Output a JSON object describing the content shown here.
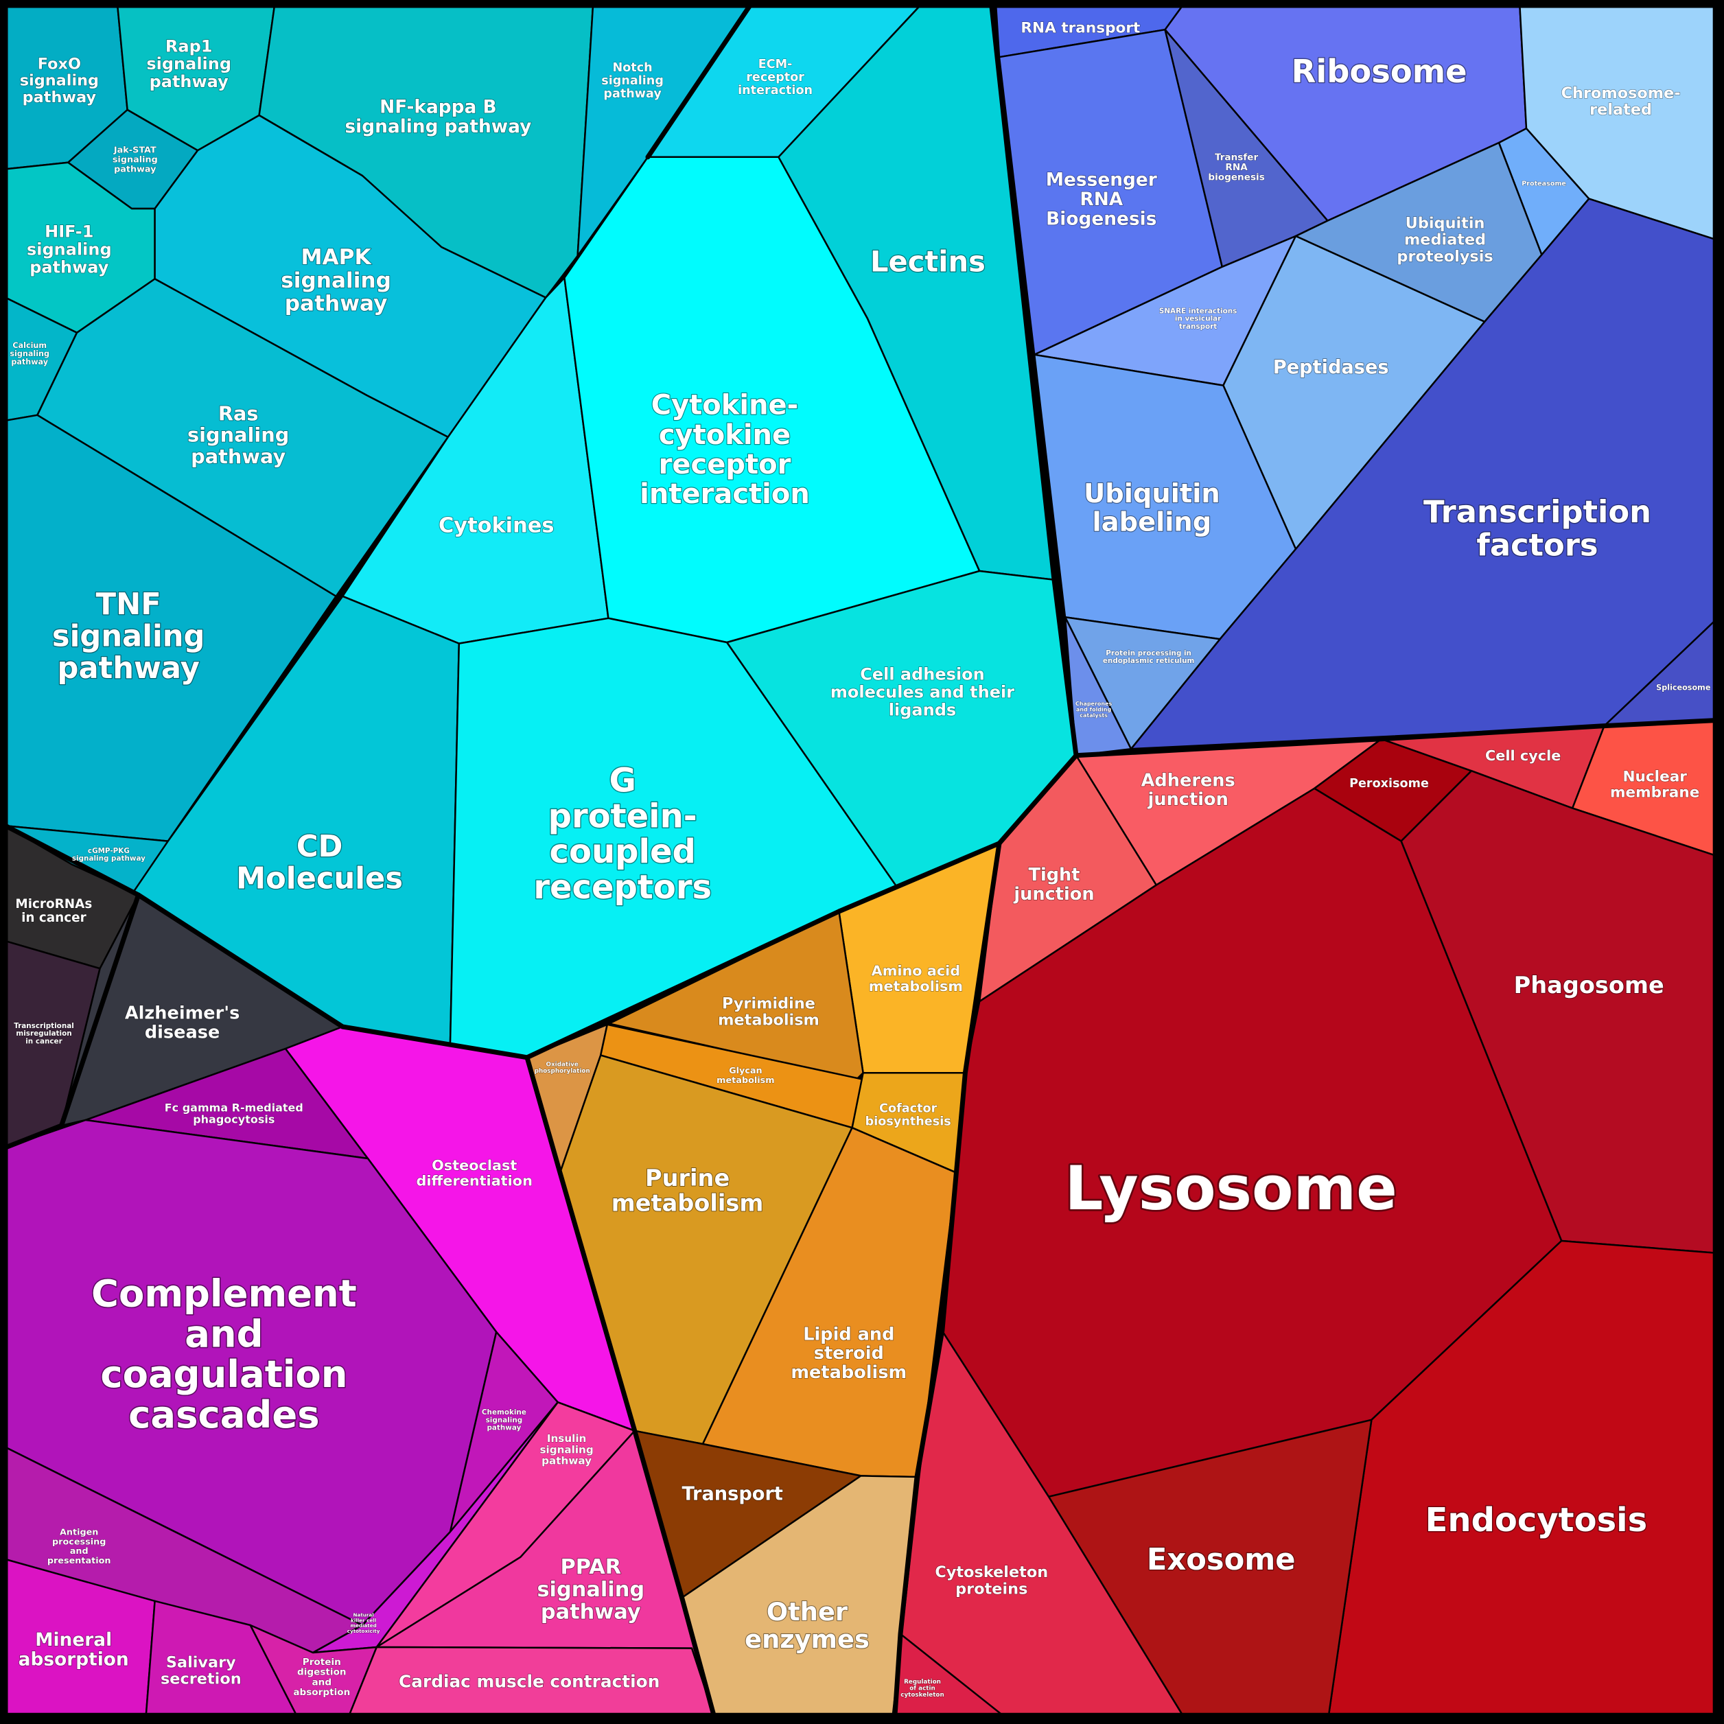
{
  "cells": [
    {
      "id": "foxo",
      "label": "FoxO\nsignaling\npathway",
      "color": "#03ADC4"
    },
    {
      "id": "rap1",
      "label": "Rap1\nsignaling\npathway",
      "color": "#06C1C3"
    },
    {
      "id": "nfkb",
      "label": "NF-kappa B\nsignaling pathway",
      "color": "#06BFC6"
    },
    {
      "id": "notch",
      "label": "Notch\nsignaling\npathway",
      "color": "#06BBD8"
    },
    {
      "id": "ecm",
      "label": "ECM-\nreceptor\ninteraction",
      "color": "#0ED7EF"
    },
    {
      "id": "jakstat",
      "label": "Jak-STAT\nsignaling\npathway",
      "color": "#04A9C1"
    },
    {
      "id": "hif1",
      "label": "HIF-1\nsignaling\npathway",
      "color": "#03C6C5"
    },
    {
      "id": "mapk",
      "label": "MAPK\nsignaling\npathway",
      "color": "#08C0DB"
    },
    {
      "id": "calcium",
      "label": "Calcium\nsignaling\npathway",
      "color": "#03B6C9"
    },
    {
      "id": "ras",
      "label": "Ras\nsignaling\npathway",
      "color": "#06BDD2"
    },
    {
      "id": "tnf",
      "label": "TNF\nsignaling\npathway",
      "color": "#03B0CA"
    },
    {
      "id": "cgmp",
      "label": "cGMP-PKG\nsignaling pathway",
      "color": "#04B2CA"
    },
    {
      "id": "cytokines",
      "label": "Cytokines",
      "color": "#12EBF7"
    },
    {
      "id": "cytokine_receptor",
      "label": "Cytokine-\ncytokine\nreceptor\ninteraction",
      "color": "#00FCFE"
    },
    {
      "id": "lectins",
      "label": "Lectins",
      "color": "#02D0D8"
    },
    {
      "id": "cd",
      "label": "CD\nMolecules",
      "color": "#03C6D7"
    },
    {
      "id": "gpcr",
      "label": "G\nprotein-\ncoupled\nreceptors",
      "color": "#06F0F4"
    },
    {
      "id": "cell_adhesion",
      "label": "Cell adhesion\nmolecules and their\nligands",
      "color": "#07E3E0"
    },
    {
      "id": "rna_transport",
      "label": "RNA transport",
      "color": "#4E68EC"
    },
    {
      "id": "ribosome",
      "label": "Ribosome",
      "color": "#6673F2"
    },
    {
      "id": "chromosome",
      "label": "Chromosome-\nrelated",
      "color": "#9DD3FB"
    },
    {
      "id": "mrna",
      "label": "Messenger\nRNA\nBiogenesis",
      "color": "#5A76F0"
    },
    {
      "id": "trna",
      "label": "Transfer\nRNA\nbiogenesis",
      "color": "#5265CD"
    },
    {
      "id": "proteasome",
      "label": "Proteasome",
      "color": "#70AEFA"
    },
    {
      "id": "ubiquitin_proteolysis",
      "label": "Ubiquitin\nmediated\nproteolysis",
      "color": "#6A9EDF"
    },
    {
      "id": "snare",
      "label": "SNARE interactions\nin vesicular\ntransport",
      "color": "#7EA4FB"
    },
    {
      "id": "peptidases",
      "label": "Peptidases",
      "color": "#7EB6F3"
    },
    {
      "id": "ubiquitin_labeling",
      "label": "Ubiquitin\nlabeling",
      "color": "#6AA1F6"
    },
    {
      "id": "transcription_factors",
      "label": "Transcription\nfactors",
      "color": "#4350CB"
    },
    {
      "id": "protein_er",
      "label": "Protein processing in\nendoplasmic reticulum",
      "color": "#70A3E9"
    },
    {
      "id": "chaperones",
      "label": "Chaperones\nand folding\ncatalysts",
      "color": "#6C8FEB"
    },
    {
      "id": "spliceosome",
      "label": "Spliceosome",
      "color": "#4750C6"
    },
    {
      "id": "adherens",
      "label": "Adherens\njunction",
      "color": "#F95C64"
    },
    {
      "id": "peroxisome",
      "label": "Peroxisome",
      "color": "#A9020E"
    },
    {
      "id": "cell_cycle",
      "label": "Cell cycle",
      "color": "#E13344"
    },
    {
      "id": "nuclear_membrane",
      "label": "Nuclear\nmembrane",
      "color": "#FD5346"
    },
    {
      "id": "tight_junction",
      "label": "Tight\njunction",
      "color": "#F35A5E"
    },
    {
      "id": "phagosome",
      "label": "Phagosome",
      "color": "#B40C22"
    },
    {
      "id": "lysosome",
      "label": "Lysosome",
      "color": "#B5061B"
    },
    {
      "id": "endocytosis",
      "label": "Endocytosis",
      "color": "#C10815"
    },
    {
      "id": "exosome",
      "label": "Exosome",
      "color": "#AE1415"
    },
    {
      "id": "cytoskeleton",
      "label": "Cytoskeleton\nproteins",
      "color": "#E1284A"
    },
    {
      "id": "reg_actin",
      "label": "Regulation\nof actin\ncytoskeleton",
      "color": "#DC2048"
    },
    {
      "id": "amino_acid",
      "label": "Amino acid\nmetabolism",
      "color": "#FBB426"
    },
    {
      "id": "pyrimidine",
      "label": "Pyrimidine\nmetabolism",
      "color": "#D98A1D"
    },
    {
      "id": "oxphos",
      "label": "Oxidative\nphosphorylation",
      "color": "#DC9545"
    },
    {
      "id": "glycan",
      "label": "Glycan\nmetabolism",
      "color": "#EC9214"
    },
    {
      "id": "cofactor",
      "label": "Cofactor\nbiosynthesis",
      "color": "#ECA61B"
    },
    {
      "id": "purine",
      "label": "Purine\nmetabolism",
      "color": "#D99A21"
    },
    {
      "id": "lipid",
      "label": "Lipid and\nsteroid\nmetabolism",
      "color": "#E98E20"
    },
    {
      "id": "transport",
      "label": "Transport",
      "color": "#8C3C04"
    },
    {
      "id": "other_enzymes",
      "label": "Other\nenzymes",
      "color": "#E4B673"
    },
    {
      "id": "micrornas",
      "label": "MicroRNAs\nin cancer",
      "color": "#2E2C2D"
    },
    {
      "id": "transcriptional_misreg",
      "label": "Transcriptional\nmisregulation\nin cancer",
      "color": "#392338"
    },
    {
      "id": "alzheimers",
      "label": "Alzheimer's\ndisease",
      "color": "#363842"
    },
    {
      "id": "fc_gamma",
      "label": "Fc gamma R-mediated\nphagocytosis",
      "color": "#A609A6"
    },
    {
      "id": "osteoclast",
      "label": "Osteoclast\ndifferentiation",
      "color": "#F515E8"
    },
    {
      "id": "complement",
      "label": "Complement\nand\ncoagulation\ncascades",
      "color": "#B114BA"
    },
    {
      "id": "chemokine",
      "label": "Chemokine\nsignaling\npathway",
      "color": "#C117B9"
    },
    {
      "id": "antigen",
      "label": "Antigen\nprocessing\nand\npresentation",
      "color": "#B51CAC"
    },
    {
      "id": "nk_cytotoxicity",
      "label": "Natural\nkiller cell\nmediated\ncytotoxicity",
      "color": "#CD1AD3"
    },
    {
      "id": "insulin",
      "label": "Insulin\nsignaling\npathway",
      "color": "#F33C9E"
    },
    {
      "id": "ppar",
      "label": "PPAR\nsignaling\npathway",
      "color": "#F0389E"
    },
    {
      "id": "mineral",
      "label": "Mineral\nabsorption",
      "color": "#DB13C3"
    },
    {
      "id": "salivary",
      "label": "Salivary\nsecretion",
      "color": "#CE19B3"
    },
    {
      "id": "protein_digestion",
      "label": "Protein\ndigestion\nand\nabsorption",
      "color": "#D722A8"
    },
    {
      "id": "cardiac",
      "label": "Cardiac muscle contraction",
      "color": "#F13E99"
    }
  ]
}
